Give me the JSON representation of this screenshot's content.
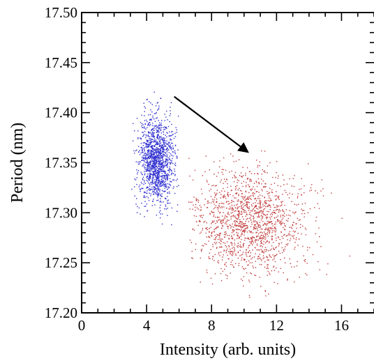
{
  "chart_data": {
    "type": "scatter",
    "title": "",
    "xlabel": "Intensity (arb. units)",
    "ylabel": "Period (nm)",
    "xlim": [
      0,
      18
    ],
    "ylim": [
      17.2,
      17.5
    ],
    "x_ticks": [
      "0",
      "4",
      "8",
      "12",
      "16"
    ],
    "x_tick_values": [
      0,
      4,
      8,
      12,
      16
    ],
    "x_minor_step": 1,
    "y_ticks": [
      "17.20",
      "17.25",
      "17.30",
      "17.35",
      "17.40",
      "17.45",
      "17.50"
    ],
    "y_tick_values": [
      17.2,
      17.25,
      17.3,
      17.35,
      17.4,
      17.45,
      17.5
    ],
    "y_minor_step": 0.01,
    "grid": false,
    "series": [
      {
        "color": "#2f2fd0",
        "point_count": 1400,
        "center": [
          4.6,
          17.352
        ],
        "spread": [
          0.55,
          0.022
        ],
        "x_range": [
          3.0,
          6.0
        ],
        "y_range": [
          17.27,
          17.44
        ]
      },
      {
        "color": "#c03a3a",
        "point_count": 1500,
        "center": [
          10.4,
          17.29
        ],
        "spread": [
          1.8,
          0.026
        ],
        "x_range": [
          6.5,
          16.6
        ],
        "y_range": [
          17.215,
          17.37
        ]
      }
    ],
    "annotations": [
      {
        "type": "arrow",
        "from": [
          5.7,
          17.416
        ],
        "to": [
          10.2,
          17.361
        ],
        "color": "#000000"
      }
    ]
  }
}
